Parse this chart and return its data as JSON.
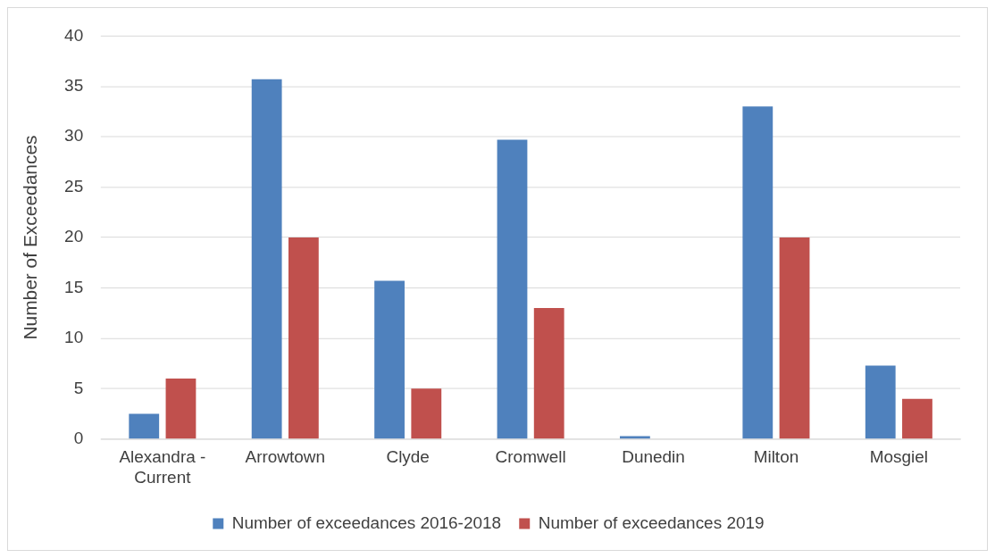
{
  "chart_data": {
    "type": "bar",
    "ylabel": "Number of Exceedances",
    "categories": [
      "Alexandra - Current",
      "Arrowtown",
      "Clyde",
      "Cromwell",
      "Dunedin",
      "Milton",
      "Mosgiel"
    ],
    "series": [
      {
        "name": "Number of exceedances 2016-2018",
        "color": "#4f81bd",
        "values": [
          2.5,
          35.7,
          15.7,
          29.7,
          0.3,
          33,
          7.3
        ]
      },
      {
        "name": "Number of exceedances 2019",
        "color": "#c0504d",
        "values": [
          6,
          20,
          5,
          13,
          null,
          20,
          4
        ]
      }
    ],
    "ylim": [
      0,
      40
    ],
    "yticks": [
      0,
      5,
      10,
      15,
      20,
      25,
      30,
      35,
      40
    ],
    "grid": "y",
    "legend": "bottom"
  }
}
